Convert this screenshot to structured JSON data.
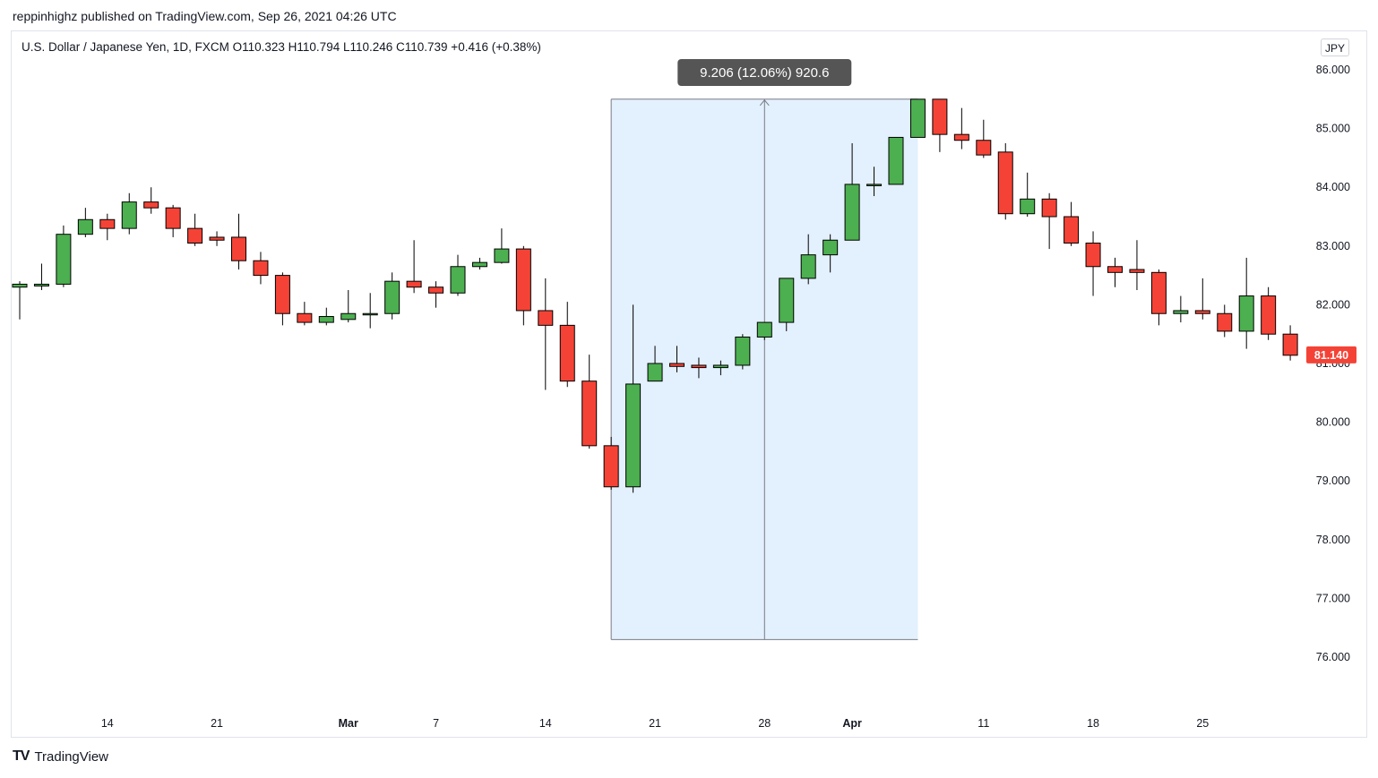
{
  "header": {
    "publisher": "reppinhighz published on TradingView.com, Sep 26, 2021 04:26 UTC",
    "symbol_line": "U.S. Dollar / Japanese Yen, 1D, FXCM  O110.323  H110.794  L110.246  C110.739  +0.416 (+0.38%)",
    "currency": "JPY"
  },
  "footer": {
    "logo_mark": "TV",
    "logo_text": "TradingView"
  },
  "colors": {
    "up": "#4caf50",
    "down": "#f44336",
    "measure_fill": "#e3f0fd",
    "measure_label_bg": "#555555",
    "last_price_bg": "#f44336"
  },
  "chart_data": {
    "type": "candlestick",
    "ylim": [
      75.0,
      86.2
    ],
    "y_ticks": [
      "86.000",
      "85.000",
      "84.000",
      "83.000",
      "82.000",
      "81.000",
      "80.000",
      "79.000",
      "78.000",
      "77.000",
      "76.000"
    ],
    "x_ticks": [
      {
        "label": "14",
        "bar": 4,
        "bold": false
      },
      {
        "label": "21",
        "bar": 9,
        "bold": false
      },
      {
        "label": "Mar",
        "bar": 15,
        "bold": true
      },
      {
        "label": "7",
        "bar": 19,
        "bold": false
      },
      {
        "label": "14",
        "bar": 24,
        "bold": false
      },
      {
        "label": "21",
        "bar": 29,
        "bold": false
      },
      {
        "label": "28",
        "bar": 34,
        "bold": false
      },
      {
        "label": "Apr",
        "bar": 38,
        "bold": true
      },
      {
        "label": "11",
        "bar": 44,
        "bold": false
      },
      {
        "label": "18",
        "bar": 49,
        "bold": false
      },
      {
        "label": "25",
        "bar": 54,
        "bold": false
      }
    ],
    "last_price": {
      "label": "81.140",
      "value": 81.14
    },
    "measure": {
      "label": "9.206 (12.06%) 920.6",
      "start_bar": 27,
      "end_bar": 41,
      "low": 76.3,
      "high": 85.5
    },
    "candles": [
      {
        "o": 82.3,
        "h": 82.4,
        "l": 81.75,
        "c": 82.35
      },
      {
        "o": 82.32,
        "h": 82.7,
        "l": 82.25,
        "c": 82.35
      },
      {
        "o": 82.35,
        "h": 83.35,
        "l": 82.3,
        "c": 83.2
      },
      {
        "o": 83.2,
        "h": 83.65,
        "l": 83.15,
        "c": 83.45
      },
      {
        "o": 83.45,
        "h": 83.55,
        "l": 83.1,
        "c": 83.3
      },
      {
        "o": 83.3,
        "h": 83.9,
        "l": 83.2,
        "c": 83.75
      },
      {
        "o": 83.75,
        "h": 84.0,
        "l": 83.55,
        "c": 83.65
      },
      {
        "o": 83.65,
        "h": 83.7,
        "l": 83.15,
        "c": 83.3
      },
      {
        "o": 83.3,
        "h": 83.55,
        "l": 83.0,
        "c": 83.05
      },
      {
        "o": 83.15,
        "h": 83.25,
        "l": 83.0,
        "c": 83.1
      },
      {
        "o": 83.15,
        "h": 83.55,
        "l": 82.6,
        "c": 82.75
      },
      {
        "o": 82.75,
        "h": 82.9,
        "l": 82.35,
        "c": 82.5
      },
      {
        "o": 82.5,
        "h": 82.55,
        "l": 81.65,
        "c": 81.85
      },
      {
        "o": 81.85,
        "h": 82.05,
        "l": 81.65,
        "c": 81.7
      },
      {
        "o": 81.7,
        "h": 81.95,
        "l": 81.65,
        "c": 81.8
      },
      {
        "o": 81.75,
        "h": 82.25,
        "l": 81.7,
        "c": 81.85
      },
      {
        "o": 81.85,
        "h": 82.2,
        "l": 81.6,
        "c": 81.85
      },
      {
        "o": 81.85,
        "h": 82.55,
        "l": 81.75,
        "c": 82.4
      },
      {
        "o": 82.4,
        "h": 83.1,
        "l": 82.2,
        "c": 82.3
      },
      {
        "o": 82.3,
        "h": 82.4,
        "l": 81.95,
        "c": 82.2
      },
      {
        "o": 82.2,
        "h": 82.85,
        "l": 82.15,
        "c": 82.65
      },
      {
        "o": 82.65,
        "h": 82.8,
        "l": 82.6,
        "c": 82.72
      },
      {
        "o": 82.72,
        "h": 83.3,
        "l": 82.7,
        "c": 82.95
      },
      {
        "o": 82.95,
        "h": 83.0,
        "l": 81.65,
        "c": 81.9
      },
      {
        "o": 81.9,
        "h": 82.45,
        "l": 80.55,
        "c": 81.65
      },
      {
        "o": 81.65,
        "h": 82.05,
        "l": 80.6,
        "c": 80.7
      },
      {
        "o": 80.7,
        "h": 81.15,
        "l": 79.55,
        "c": 79.6
      },
      {
        "o": 79.6,
        "h": 79.75,
        "l": 78.85,
        "c": 78.9
      },
      {
        "o": 78.9,
        "h": 82.0,
        "l": 78.8,
        "c": 80.65
      },
      {
        "o": 80.7,
        "h": 81.3,
        "l": 80.7,
        "c": 81.0
      },
      {
        "o": 81.0,
        "h": 81.3,
        "l": 80.85,
        "c": 80.95
      },
      {
        "o": 80.97,
        "h": 81.1,
        "l": 80.75,
        "c": 80.93
      },
      {
        "o": 80.93,
        "h": 81.05,
        "l": 80.8,
        "c": 80.97
      },
      {
        "o": 80.97,
        "h": 81.5,
        "l": 80.9,
        "c": 81.45
      },
      {
        "o": 81.45,
        "h": 81.7,
        "l": 81.4,
        "c": 81.7
      },
      {
        "o": 81.7,
        "h": 82.45,
        "l": 81.55,
        "c": 82.45
      },
      {
        "o": 82.45,
        "h": 83.2,
        "l": 82.35,
        "c": 82.85
      },
      {
        "o": 82.85,
        "h": 83.2,
        "l": 82.55,
        "c": 83.1
      },
      {
        "o": 83.1,
        "h": 84.75,
        "l": 83.1,
        "c": 84.05
      },
      {
        "o": 84.05,
        "h": 84.35,
        "l": 83.85,
        "c": 84.05
      },
      {
        "o": 84.05,
        "h": 84.85,
        "l": 84.05,
        "c": 84.85
      },
      {
        "o": 84.85,
        "h": 85.5,
        "l": 84.85,
        "c": 85.5
      },
      {
        "o": 85.5,
        "h": 85.5,
        "l": 84.6,
        "c": 84.9
      },
      {
        "o": 84.9,
        "h": 85.35,
        "l": 84.65,
        "c": 84.8
      },
      {
        "o": 84.8,
        "h": 85.15,
        "l": 84.5,
        "c": 84.55
      },
      {
        "o": 84.6,
        "h": 84.75,
        "l": 83.45,
        "c": 83.55
      },
      {
        "o": 83.55,
        "h": 84.25,
        "l": 83.5,
        "c": 83.8
      },
      {
        "o": 83.8,
        "h": 83.9,
        "l": 82.95,
        "c": 83.5
      },
      {
        "o": 83.5,
        "h": 83.75,
        "l": 83.0,
        "c": 83.05
      },
      {
        "o": 83.05,
        "h": 83.25,
        "l": 82.15,
        "c": 82.65
      },
      {
        "o": 82.65,
        "h": 82.8,
        "l": 82.3,
        "c": 82.55
      },
      {
        "o": 82.6,
        "h": 83.1,
        "l": 82.25,
        "c": 82.55
      },
      {
        "o": 82.55,
        "h": 82.6,
        "l": 81.65,
        "c": 81.85
      },
      {
        "o": 81.85,
        "h": 82.15,
        "l": 81.7,
        "c": 81.9
      },
      {
        "o": 81.9,
        "h": 82.45,
        "l": 81.75,
        "c": 81.85
      },
      {
        "o": 81.85,
        "h": 82.0,
        "l": 81.45,
        "c": 81.55
      },
      {
        "o": 81.55,
        "h": 82.8,
        "l": 81.25,
        "c": 82.15
      },
      {
        "o": 82.15,
        "h": 82.3,
        "l": 81.4,
        "c": 81.5
      },
      {
        "o": 81.5,
        "h": 81.65,
        "l": 81.05,
        "c": 81.14
      }
    ]
  }
}
